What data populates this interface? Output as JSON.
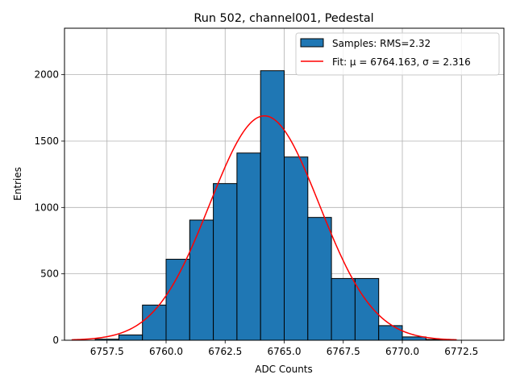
{
  "chart_data": {
    "type": "bar",
    "title": "Run 502, channel001, Pedestal",
    "xlabel": "ADC Counts",
    "ylabel": "Entries",
    "xlim": [
      6755.7,
      6774.3
    ],
    "ylim": [
      0,
      2350
    ],
    "grid": true,
    "legend_position": "top-right",
    "x_ticks": [
      {
        "value": 6757.5,
        "label": "6757.5"
      },
      {
        "value": 6760.0,
        "label": "6760.0"
      },
      {
        "value": 6762.5,
        "label": "6762.5"
      },
      {
        "value": 6765.0,
        "label": "6765.0"
      },
      {
        "value": 6767.5,
        "label": "6767.5"
      },
      {
        "value": 6770.0,
        "label": "6770.0"
      },
      {
        "value": 6772.5,
        "label": "6772.5"
      }
    ],
    "y_ticks": [
      {
        "value": 0,
        "label": "0"
      },
      {
        "value": 500,
        "label": "500"
      },
      {
        "value": 1000,
        "label": "1000"
      },
      {
        "value": 1500,
        "label": "1500"
      },
      {
        "value": 2000,
        "label": "2000"
      }
    ],
    "histogram": {
      "name": "Samples: RMS=2.32",
      "color": "#1f77b4",
      "edge_color": "#000000",
      "bins": [
        {
          "x0": 6757,
          "x1": 6758,
          "count": 8
        },
        {
          "x0": 6758,
          "x1": 6759,
          "count": 40
        },
        {
          "x0": 6759,
          "x1": 6760,
          "count": 265
        },
        {
          "x0": 6760,
          "x1": 6761,
          "count": 610
        },
        {
          "x0": 6761,
          "x1": 6762,
          "count": 905
        },
        {
          "x0": 6762,
          "x1": 6763,
          "count": 1180
        },
        {
          "x0": 6763,
          "x1": 6764,
          "count": 1410
        },
        {
          "x0": 6764,
          "x1": 6765,
          "count": 2030
        },
        {
          "x0": 6765,
          "x1": 6766,
          "count": 1380
        },
        {
          "x0": 6766,
          "x1": 6767,
          "count": 925
        },
        {
          "x0": 6767,
          "x1": 6768,
          "count": 465
        },
        {
          "x0": 6768,
          "x1": 6769,
          "count": 465
        },
        {
          "x0": 6769,
          "x1": 6770,
          "count": 110
        },
        {
          "x0": 6770,
          "x1": 6771,
          "count": 25
        },
        {
          "x0": 6771,
          "x1": 6772,
          "count": 6
        }
      ]
    },
    "fit": {
      "name": "Fit: μ = 6764.163, σ = 2.316",
      "color": "#ff0000",
      "mu": 6764.163,
      "sigma": 2.316,
      "amplitude": 1690,
      "x_range": [
        6756,
        6772.3
      ]
    }
  }
}
